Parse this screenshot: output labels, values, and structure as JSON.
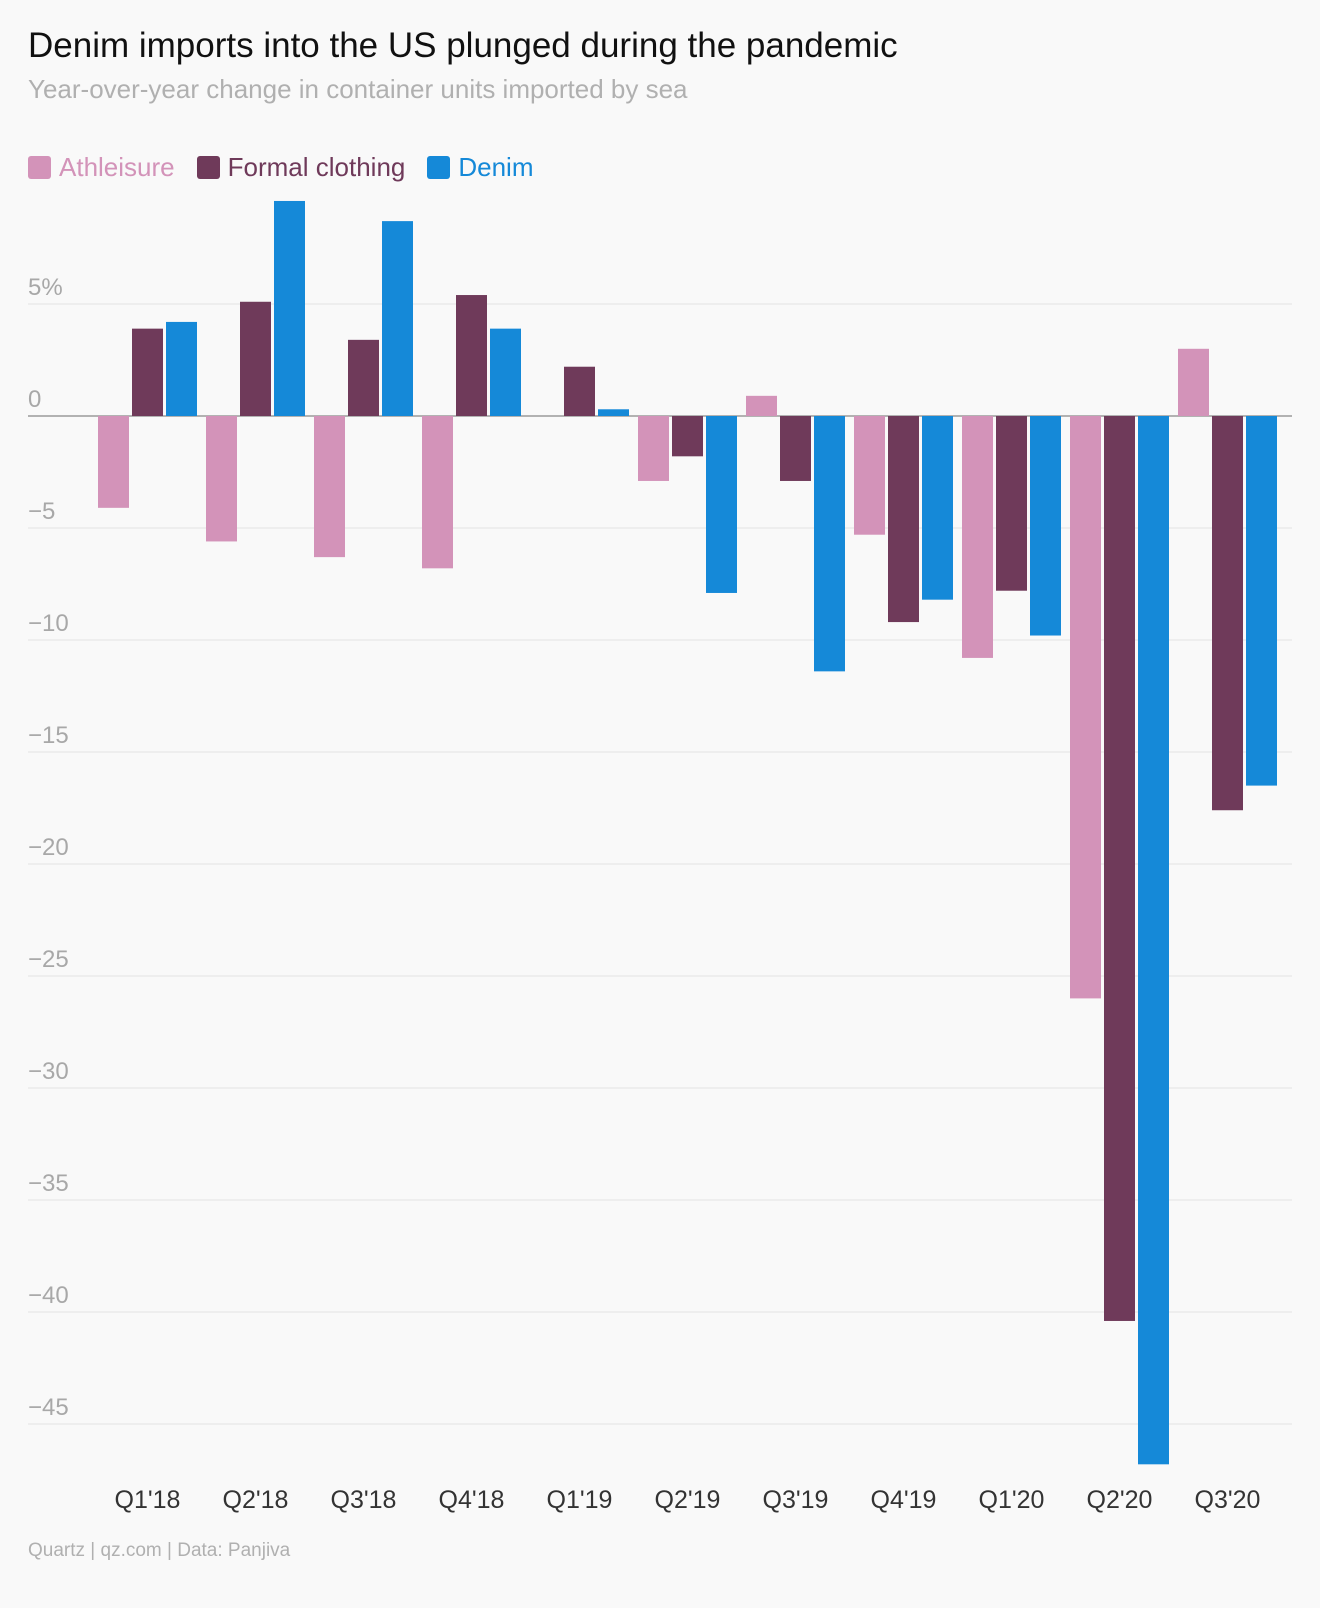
{
  "header": {
    "title": "Denim imports into the US plunged during the pandemic",
    "subtitle": "Year-over-year change in container units imported by sea"
  },
  "footer": {
    "source": "Quartz | qz.com | Data: Panjiva"
  },
  "chart_data": {
    "type": "bar",
    "title": "Denim imports into the US plunged during the pandemic",
    "subtitle": "Year-over-year change in container units imported by sea",
    "categories": [
      "Q1'18",
      "Q2'18",
      "Q3'18",
      "Q4'18",
      "Q1'19",
      "Q2'19",
      "Q3'19",
      "Q4'19",
      "Q1'20",
      "Q2'20",
      "Q3'20"
    ],
    "series": [
      {
        "name": "Athleisure",
        "color": "#d393b9",
        "values": [
          -4.1,
          -5.6,
          -6.3,
          -6.8,
          0,
          -2.9,
          0.9,
          -5.3,
          -10.8,
          -26.0,
          3.0
        ]
      },
      {
        "name": "Formal clothing",
        "color": "#6f3a5a",
        "values": [
          3.9,
          5.1,
          3.4,
          5.4,
          2.2,
          -1.8,
          -2.9,
          -9.2,
          -7.8,
          -40.4,
          -17.6
        ]
      },
      {
        "name": "Denim",
        "color": "#1589d8",
        "values": [
          4.2,
          9.6,
          8.7,
          3.9,
          0.3,
          -7.9,
          -11.4,
          -8.2,
          -9.8,
          -46.8,
          -16.5
        ]
      }
    ],
    "yticks": [
      {
        "value": 5,
        "label": "5%"
      },
      {
        "value": 0,
        "label": "0"
      },
      {
        "value": -5,
        "label": "−5"
      },
      {
        "value": -10,
        "label": "−10"
      },
      {
        "value": -15,
        "label": "−15"
      },
      {
        "value": -20,
        "label": "−20"
      },
      {
        "value": -25,
        "label": "−25"
      },
      {
        "value": -30,
        "label": "−30"
      },
      {
        "value": -35,
        "label": "−35"
      },
      {
        "value": -40,
        "label": "−40"
      },
      {
        "value": -45,
        "label": "−45"
      }
    ],
    "ylim": [
      -47,
      10
    ],
    "grid": true,
    "legend_position": "top-left",
    "xlabel": "",
    "ylabel": ""
  }
}
